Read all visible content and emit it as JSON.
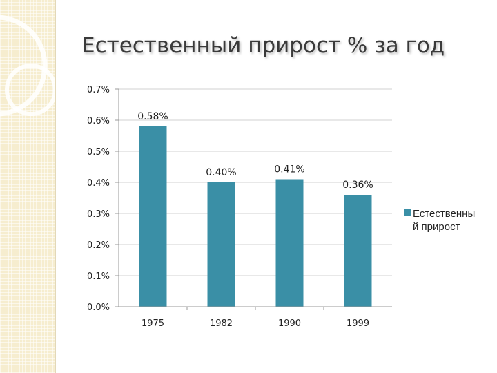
{
  "slide": {
    "title": "Естественный прирост % за год"
  },
  "chart_data": {
    "type": "bar",
    "title": "Естественный прирост % за год",
    "categories": [
      "1975",
      "1982",
      "1990",
      "1999"
    ],
    "series": [
      {
        "name": "Естественный прирост",
        "values": [
          0.58,
          0.4,
          0.41,
          0.36
        ],
        "data_labels": [
          "0.58%",
          "0.40%",
          "0.41%",
          "0.36%"
        ]
      }
    ],
    "ylim": [
      0,
      0.7
    ],
    "yticks": [
      0,
      0.1,
      0.2,
      0.3,
      0.4,
      0.5,
      0.6,
      0.7
    ],
    "ytick_labels": [
      "0.0%",
      "0.1%",
      "0.2%",
      "0.3%",
      "0.4%",
      "0.5%",
      "0.6%",
      "0.7%"
    ],
    "legend": {
      "placement": "right",
      "lines": [
        "Естественны",
        "й прирост"
      ]
    },
    "grid": true,
    "colors": {
      "bar": "#3a8fa6",
      "grid": "#d0d0d0",
      "axis": "#9a9a9a"
    }
  }
}
